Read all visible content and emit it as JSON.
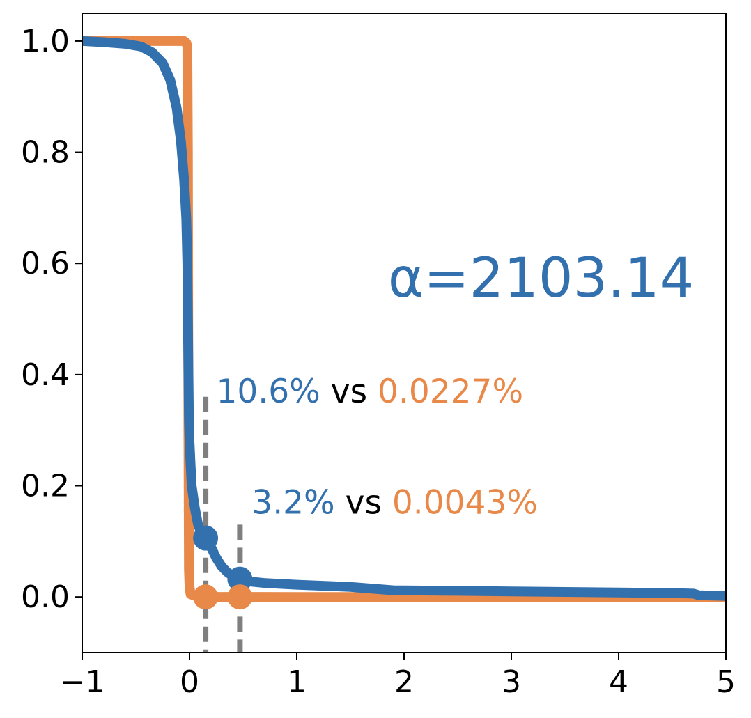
{
  "chart_data": {
    "type": "line",
    "xlim": [
      -1,
      5
    ],
    "ylim": [
      -0.1,
      1.05
    ],
    "x_ticks": [
      -1,
      0,
      1,
      2,
      3,
      4,
      5
    ],
    "x_tick_labels": [
      "−1",
      "0",
      "1",
      "2",
      "3",
      "4",
      "5"
    ],
    "y_ticks": [
      0.0,
      0.2,
      0.4,
      0.6,
      0.8,
      1.0
    ],
    "y_tick_labels": [
      "0.0",
      "0.2",
      "0.4",
      "0.6",
      "0.8",
      "1.0"
    ],
    "grid": false,
    "title": "",
    "xlabel": "",
    "ylabel": "",
    "series": [
      {
        "color": "#e8894a",
        "x": [
          -1.0,
          -0.5,
          -0.1,
          -0.05,
          -0.03,
          -0.02,
          -0.015,
          -0.01,
          -0.005,
          0.0,
          0.01,
          0.05,
          0.15,
          0.5,
          1.0,
          2.0,
          3.0,
          4.0,
          5.0
        ],
        "y": [
          1.0,
          1.0,
          1.0,
          1.0,
          0.997,
          0.99,
          0.8,
          0.3,
          0.05,
          0.02,
          0.005,
          0.002,
          0.0002,
          4e-05,
          0.0,
          0.0,
          0.0,
          0.0,
          0.0
        ]
      },
      {
        "color": "#3370ae",
        "x": [
          -1.0,
          -0.8,
          -0.6,
          -0.45,
          -0.35,
          -0.25,
          -0.18,
          -0.12,
          -0.08,
          -0.05,
          -0.03,
          -0.02,
          -0.015,
          -0.01,
          -0.005,
          0.0,
          0.01,
          0.02,
          0.05,
          0.08,
          0.1,
          0.13,
          0.15,
          0.2,
          0.25,
          0.3,
          0.35,
          0.4,
          0.47,
          0.55,
          0.7,
          1.0,
          1.5,
          1.9,
          2.5,
          3.0,
          3.5,
          4.0,
          4.5,
          4.7,
          4.75,
          5.0
        ],
        "y": [
          1.0,
          0.998,
          0.995,
          0.99,
          0.98,
          0.96,
          0.93,
          0.88,
          0.82,
          0.75,
          0.68,
          0.6,
          0.5,
          0.4,
          0.32,
          0.28,
          0.24,
          0.2,
          0.16,
          0.13,
          0.12,
          0.11,
          0.106,
          0.09,
          0.07,
          0.055,
          0.045,
          0.038,
          0.032,
          0.028,
          0.025,
          0.022,
          0.018,
          0.012,
          0.011,
          0.01,
          0.009,
          0.008,
          0.007,
          0.006,
          0.003,
          0.002
        ]
      }
    ],
    "markers": [
      {
        "x": 0.15,
        "y": 0.106,
        "color": "#3370ae"
      },
      {
        "x": 0.47,
        "y": 0.032,
        "color": "#3370ae"
      },
      {
        "x": 0.15,
        "y": 0.0,
        "color": "#e8894a"
      },
      {
        "x": 0.47,
        "y": 0.0,
        "color": "#e8894a"
      }
    ],
    "vlines": [
      {
        "x": 0.15,
        "y_top": 0.36,
        "color": "#7f7f7f"
      },
      {
        "x": 0.47,
        "y_top": 0.13,
        "color": "#7f7f7f"
      }
    ],
    "annotations": [
      {
        "x": 0.25,
        "y": 0.35,
        "parts": [
          {
            "text": "10.6%",
            "color": "#3370ae"
          },
          {
            "text": " vs ",
            "color": "#000000"
          },
          {
            "text": "0.0227%",
            "color": "#e8894a"
          }
        ]
      },
      {
        "x": 0.58,
        "y": 0.15,
        "parts": [
          {
            "text": "3.2%",
            "color": "#3370ae"
          },
          {
            "text": " vs ",
            "color": "#000000"
          },
          {
            "text": "0.0043%",
            "color": "#e8894a"
          }
        ]
      }
    ],
    "alpha_label": {
      "text": "α=2103.14",
      "color": "#3370ae",
      "x": 1.85,
      "y": 0.54
    }
  }
}
